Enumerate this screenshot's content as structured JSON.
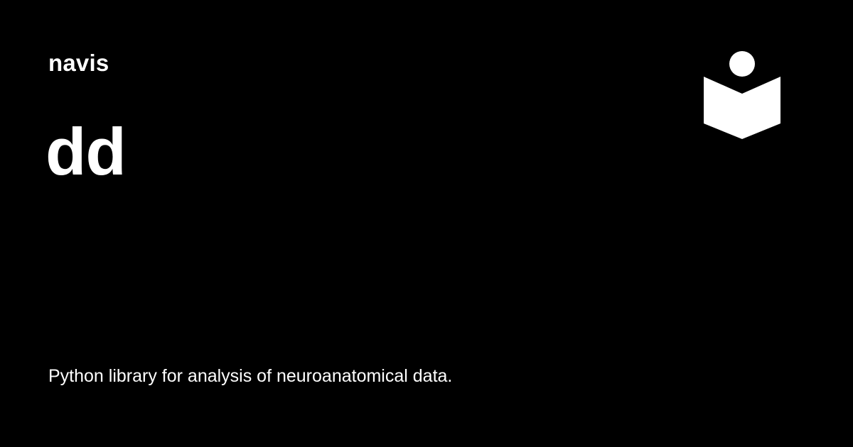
{
  "site": {
    "name": "navis"
  },
  "page": {
    "title": "dd",
    "description": "Python library for analysis of neuroanatomical data."
  },
  "logo": {
    "icon": "reader-book-icon",
    "color": "#ffffff"
  },
  "theme": {
    "background": "#000000",
    "text": "#ffffff"
  }
}
